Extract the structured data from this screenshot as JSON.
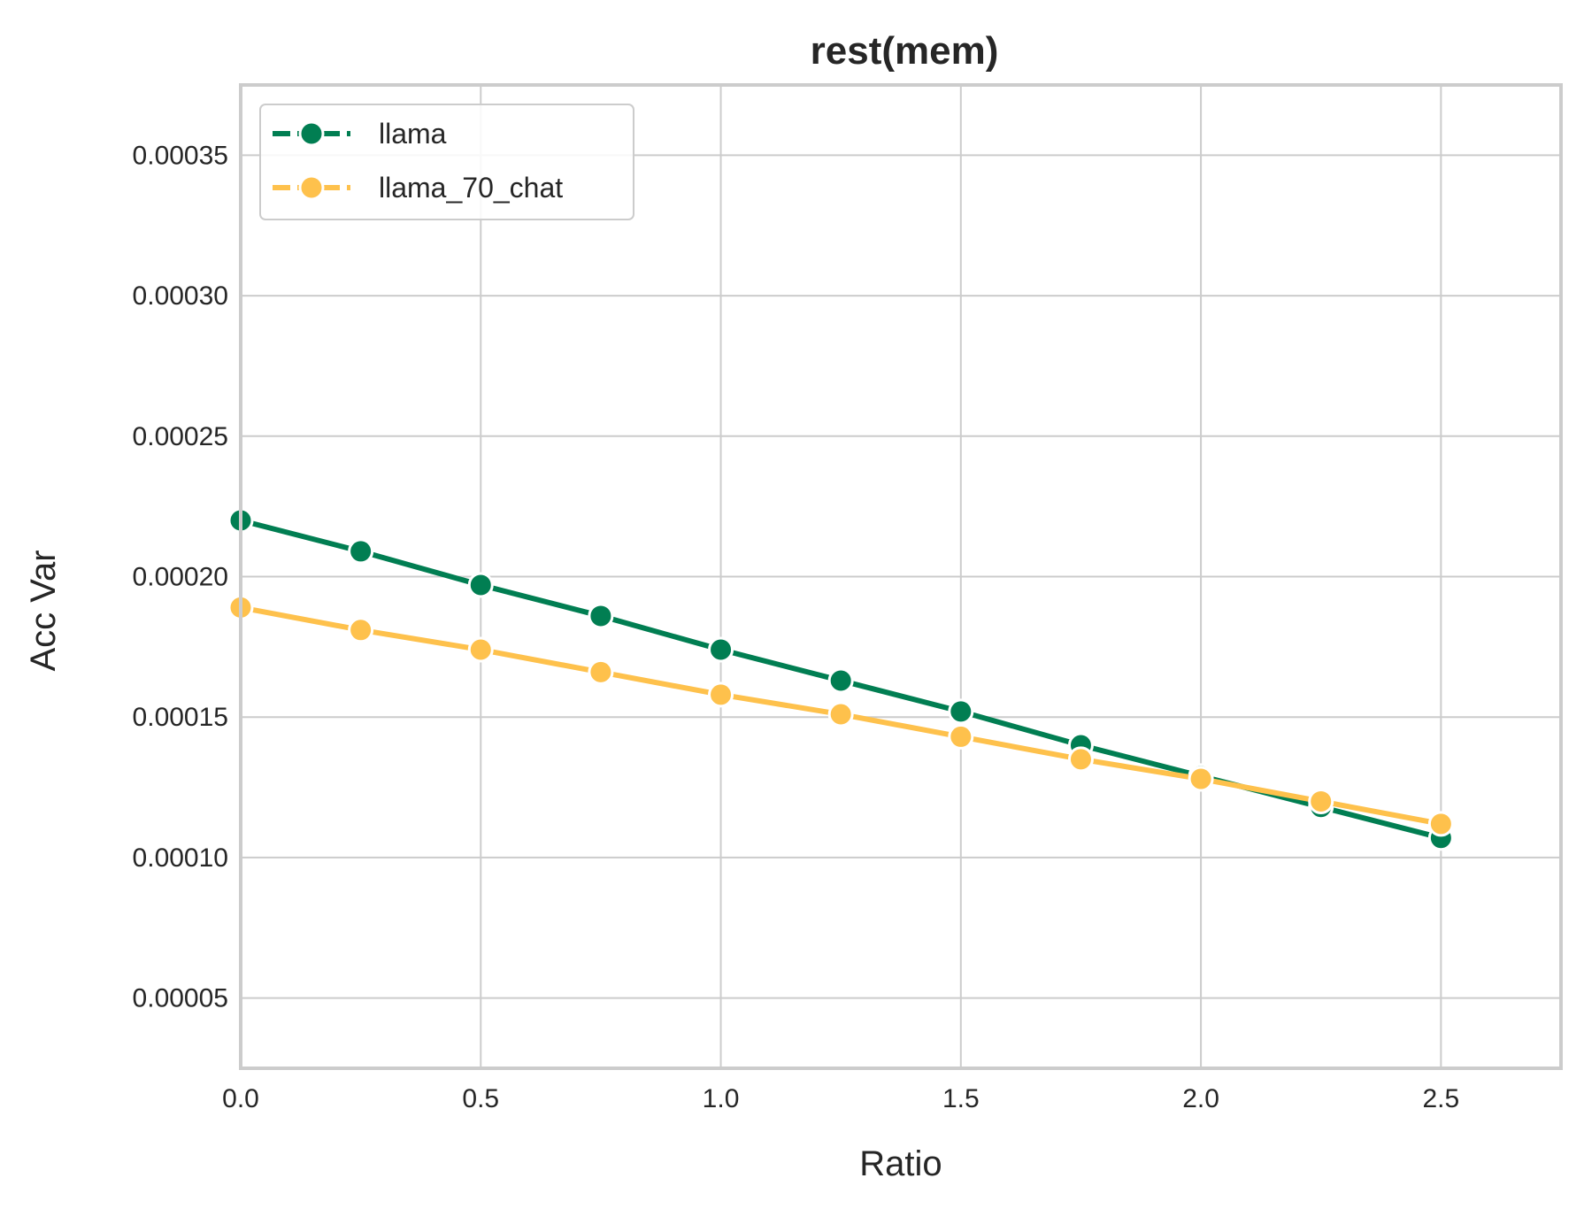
{
  "chart_data": {
    "type": "line",
    "title": "rest(mem)",
    "xlabel": "Ratio",
    "ylabel": "Acc Var",
    "xlim": [
      0.0,
      2.75
    ],
    "ylim": [
      2.5e-05,
      0.000375
    ],
    "x_ticks": [
      0.0,
      0.5,
      1.0,
      1.5,
      2.0,
      2.5
    ],
    "x_tick_labels": [
      "0.0",
      "0.5",
      "1.0",
      "1.5",
      "2.0",
      "2.5"
    ],
    "y_ticks": [
      5e-05,
      0.0001,
      0.00015,
      0.0002,
      0.00025,
      0.0003,
      0.00035
    ],
    "y_tick_labels": [
      "0.00005",
      "0.00010",
      "0.00015",
      "0.00020",
      "0.00025",
      "0.00030",
      "0.00035"
    ],
    "grid": true,
    "legend_position": "top-left",
    "x": [
      0.0,
      0.25,
      0.5,
      0.75,
      1.0,
      1.25,
      1.5,
      1.75,
      2.0,
      2.25,
      2.5
    ],
    "series": [
      {
        "name": "llama",
        "color": "#017E52",
        "marker": "circle",
        "values": [
          0.00022,
          0.000209,
          0.000197,
          0.000186,
          0.000174,
          0.000163,
          0.000152,
          0.00014,
          0.000129,
          0.000118,
          0.000107
        ]
      },
      {
        "name": "llama_70_chat",
        "color": "#FEC14C",
        "marker": "circle",
        "values": [
          0.000189,
          0.000181,
          0.000174,
          0.000166,
          0.000158,
          0.000151,
          0.000143,
          0.000135,
          0.000128,
          0.00012,
          0.000112
        ]
      }
    ]
  }
}
